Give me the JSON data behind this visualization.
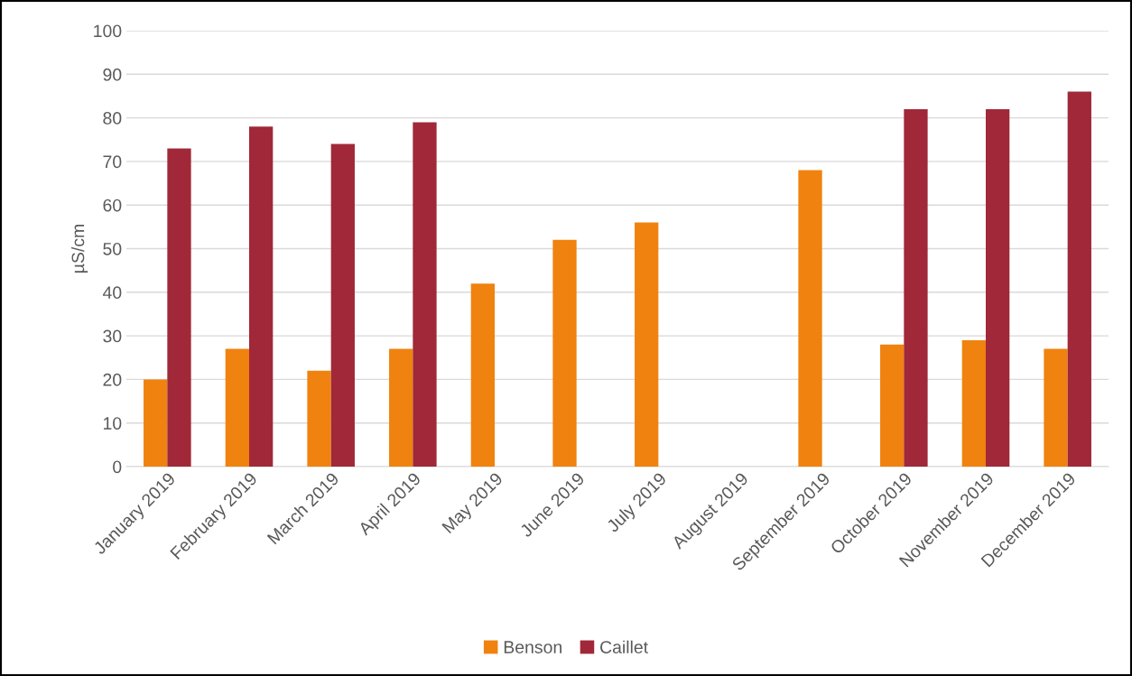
{
  "chart_data": {
    "type": "bar",
    "ylabel": "µS/cm",
    "categories": [
      "January 2019",
      "February 2019",
      "March 2019",
      "April 2019",
      "May 2019",
      "June 2019",
      "July 2019",
      "August 2019",
      "September 2019",
      "October 2019",
      "November 2019",
      "December 2019"
    ],
    "series": [
      {
        "name": "Benson",
        "color": "#f0820f",
        "values": [
          20,
          27,
          22,
          27,
          42,
          52,
          56,
          null,
          68,
          28,
          29,
          27
        ]
      },
      {
        "name": "Caillet",
        "color": "#a02838",
        "values": [
          73,
          78,
          74,
          79,
          null,
          null,
          null,
          null,
          null,
          82,
          82,
          86
        ]
      }
    ],
    "ylim": [
      0,
      100
    ],
    "yticks": [
      0,
      10,
      20,
      30,
      40,
      50,
      60,
      70,
      80,
      90,
      100
    ],
    "grid": "y",
    "legend": "bottom"
  }
}
